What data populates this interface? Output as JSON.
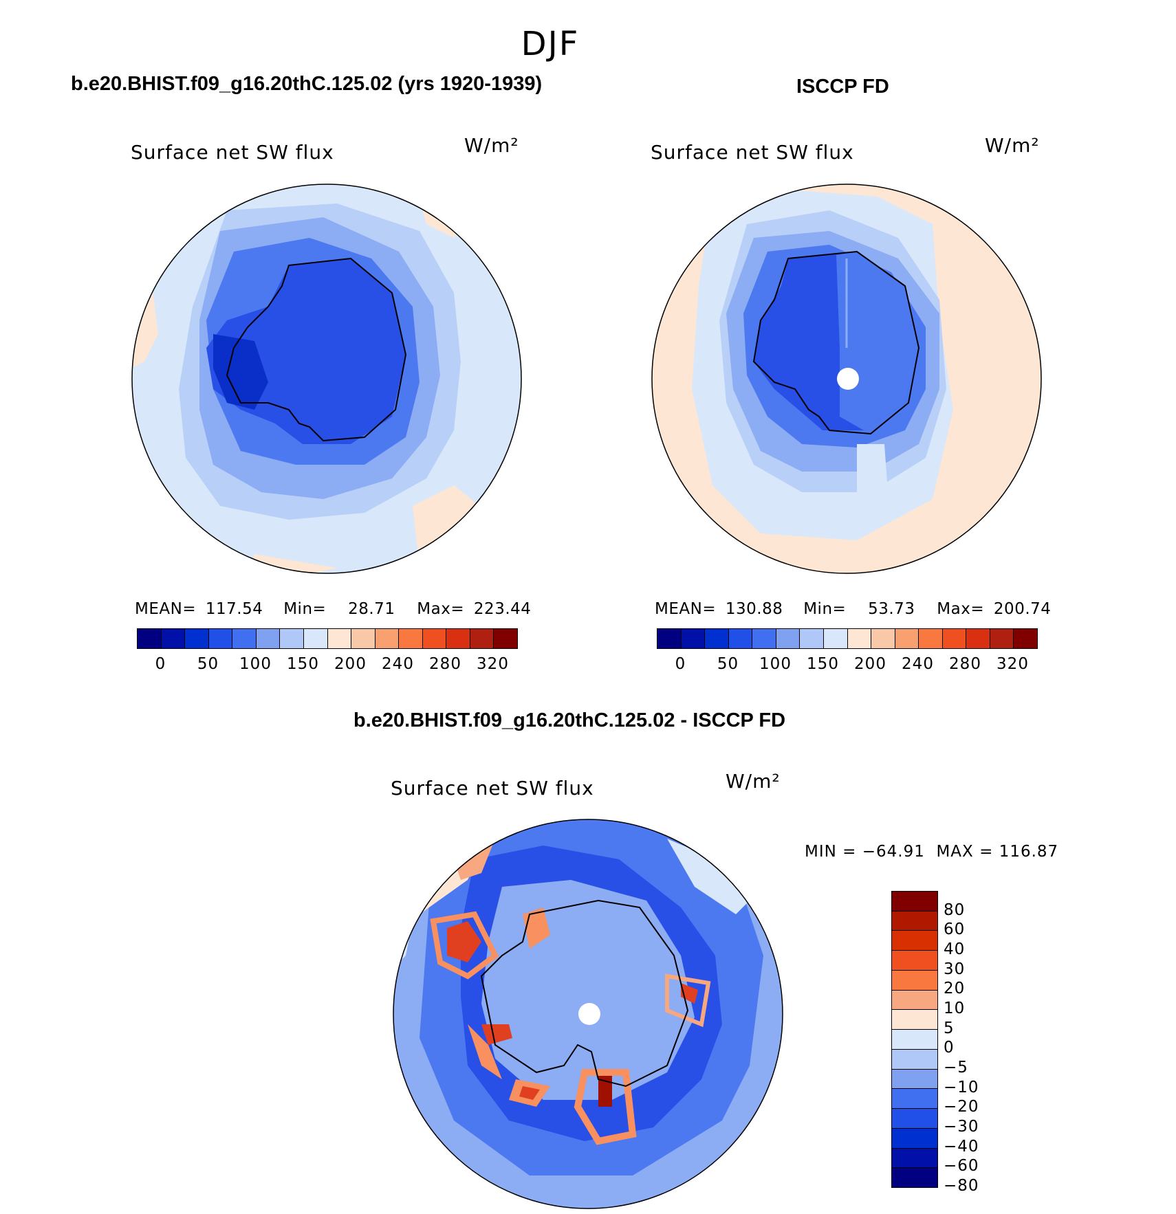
{
  "page_title": "DJF",
  "panels": [
    {
      "title": "b.e20.BHIST.f09_g16.20thC.125.02 (yrs 1920-1939)",
      "field": "Surface net SW flux",
      "units": "W/m²",
      "stats": {
        "mean_label": "MEAN=",
        "mean": "117.54",
        "min_label": "Min=",
        "min": "28.71",
        "max_label": "Max=",
        "max": "223.44"
      }
    },
    {
      "title": "ISCCP FD",
      "field": "Surface net SW flux",
      "units": "W/m²",
      "stats": {
        "mean_label": "MEAN=",
        "mean": "130.88",
        "min_label": "Min=",
        "min": "53.73",
        "max_label": "Max=",
        "max": "200.74"
      }
    },
    {
      "title": "b.e20.BHIST.f09_g16.20thC.125.02 - ISCCP FD",
      "field": "Surface net SW flux",
      "units": "W/m²",
      "minmax_text": "MIN = −64.91  MAX = 116.87"
    }
  ],
  "top_colorbar": {
    "tick_labels": [
      "0",
      "50",
      "100",
      "150",
      "200",
      "240",
      "280",
      "320"
    ],
    "colors": [
      "#000080",
      "#0010a8",
      "#0030d0",
      "#2050e8",
      "#4070f0",
      "#80a0f0",
      "#b0c8f8",
      "#d8e8fa",
      "#fde6d4",
      "#f8c8a8",
      "#f8a070",
      "#f87840",
      "#f05020",
      "#d83010",
      "#b02010",
      "#800000"
    ]
  },
  "diff_colorbar": {
    "tick_labels": [
      "80",
      "60",
      "40",
      "30",
      "20",
      "10",
      "5",
      "0",
      "−5",
      "−10",
      "−20",
      "−30",
      "−40",
      "−60",
      "−80"
    ],
    "colors": [
      "#800000",
      "#b01800",
      "#d83000",
      "#f05020",
      "#f87840",
      "#f8a880",
      "#fde6d4",
      "#d8e8fa",
      "#b0c8f8",
      "#80a0f0",
      "#4070f0",
      "#2050e8",
      "#0030d0",
      "#0010a8",
      "#000080"
    ]
  },
  "map_colors": {
    "deep": "#0a2ec8",
    "ice": "#2850e6",
    "mid": "#4c78f0",
    "light": "#8cacf4",
    "pale": "#b8cff8",
    "faint": "#d8e8fa",
    "warm": "#fde6d4",
    "red": "#e04020",
    "orange": "#f89060",
    "darkred": "#a01000"
  }
}
